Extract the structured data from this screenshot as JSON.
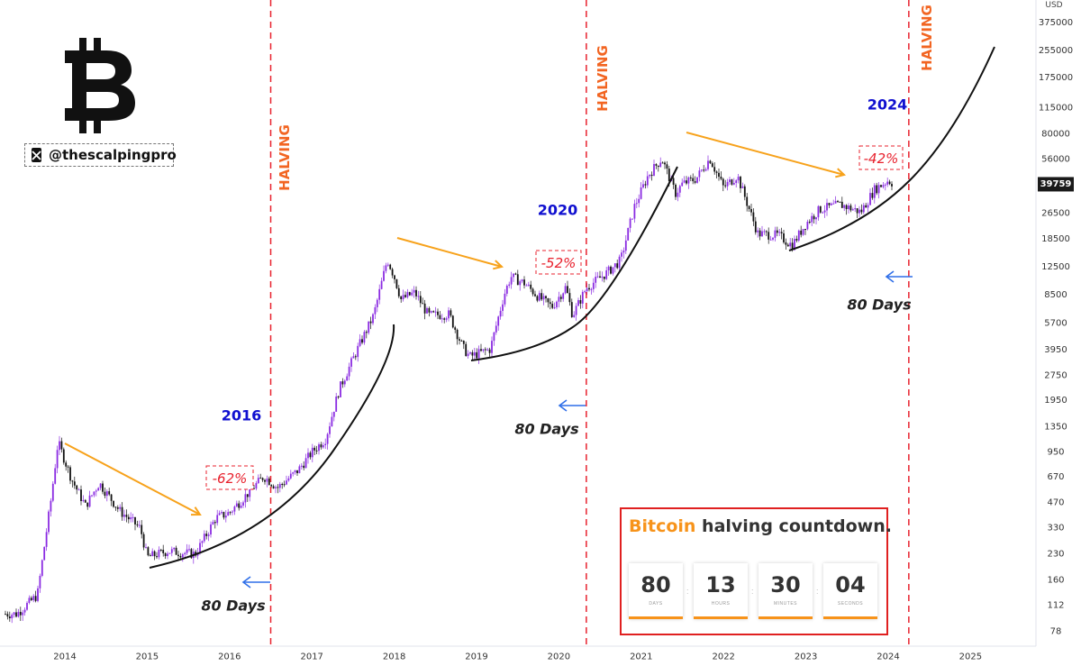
{
  "branding": {
    "handle": "@thescalpingpro",
    "logo_icon": "bitcoin-b-icon",
    "social_icon": "x-logo-icon"
  },
  "price_axis": {
    "currency": "USD",
    "ticks": [
      "375000",
      "255000",
      "175000",
      "115000",
      "80000",
      "56000",
      "39759",
      "26500",
      "18500",
      "12500",
      "8500",
      "5700",
      "3950",
      "2750",
      "1950",
      "1350",
      "950",
      "670",
      "470",
      "330",
      "230",
      "160",
      "112",
      "78"
    ],
    "current_price": "39759"
  },
  "time_axis": {
    "ticks": [
      "2014",
      "2015",
      "2016",
      "2017",
      "2018",
      "2019",
      "2020",
      "2021",
      "2022",
      "2023",
      "2024",
      "2025"
    ]
  },
  "annotations": {
    "halving_label": "HALVING",
    "year_labels": [
      "2016",
      "2020",
      "2024"
    ],
    "drawdowns": [
      "-62%",
      "-52%",
      "-42%"
    ],
    "days_label": "80 Days"
  },
  "countdown": {
    "brand": "Bitcoin",
    "title_rest": " halving countdown.",
    "units": [
      {
        "value": "80",
        "label": "DAYS"
      },
      {
        "value": "13",
        "label": "HOURS"
      },
      {
        "value": "30",
        "label": "MINUTES"
      },
      {
        "value": "04",
        "label": "SECONDS"
      }
    ]
  },
  "colors": {
    "candle_up": "#8a2be2",
    "candle_down": "#111111",
    "halving_line": "#e8222e",
    "halving_text": "#f26522",
    "trend_arrow": "#f7a21b",
    "year_text": "#1010d0",
    "days_arrow": "#2f6fe8",
    "current_price_bg": "#1a1a1a"
  },
  "chart_data": {
    "type": "candlestick",
    "title": "",
    "y_scale": "log",
    "ylim": [
      60,
      380000
    ],
    "x_range": [
      "2013-06",
      "2025-09"
    ],
    "xlabel": "",
    "ylabel": "USD",
    "halving_dates": [
      "2016-07",
      "2020-05",
      "2024-04"
    ],
    "cycles": [
      {
        "year_label": "2016",
        "drawdown": "-62%",
        "high_date": "2013-12",
        "high_price": 1150,
        "low_date": "2015-01",
        "low_price": 180
      },
      {
        "year_label": "2020",
        "drawdown": "-52%",
        "high_date": "2017-12",
        "high_price": 19700,
        "low_date": "2018-12",
        "low_price": 3200
      },
      {
        "year_label": "2024",
        "drawdown": "-42%",
        "high_date": "2021-11",
        "high_price": 69000,
        "low_date": "2022-11",
        "low_price": 15500
      }
    ],
    "price_path": [
      [
        "2013-06",
        100
      ],
      [
        "2013-09",
        130
      ],
      [
        "2013-11",
        500
      ],
      [
        "2013-12",
        1100
      ],
      [
        "2014-02",
        650
      ],
      [
        "2014-04",
        450
      ],
      [
        "2014-06",
        620
      ],
      [
        "2014-09",
        420
      ],
      [
        "2014-12",
        330
      ],
      [
        "2015-01",
        220
      ],
      [
        "2015-04",
        240
      ],
      [
        "2015-08",
        230
      ],
      [
        "2015-11",
        380
      ],
      [
        "2016-01",
        410
      ],
      [
        "2016-06",
        680
      ],
      [
        "2016-08",
        580
      ],
      [
        "2016-11",
        740
      ],
      [
        "2017-01",
        950
      ],
      [
        "2017-03",
        1150
      ],
      [
        "2017-05",
        2300
      ],
      [
        "2017-08",
        4300
      ],
      [
        "2017-10",
        6400
      ],
      [
        "2017-12",
        14000
      ],
      [
        "2018-01",
        11000
      ],
      [
        "2018-02",
        8000
      ],
      [
        "2018-04",
        8800
      ],
      [
        "2018-06",
        6400
      ],
      [
        "2018-09",
        6500
      ],
      [
        "2018-11",
        4100
      ],
      [
        "2018-12",
        3600
      ],
      [
        "2019-03",
        4000
      ],
      [
        "2019-05",
        8500
      ],
      [
        "2019-06",
        11000
      ],
      [
        "2019-08",
        10000
      ],
      [
        "2019-10",
        8300
      ],
      [
        "2019-12",
        7200
      ],
      [
        "2020-02",
        9500
      ],
      [
        "2020-03",
        6400
      ],
      [
        "2020-05",
        9400
      ],
      [
        "2020-08",
        11600
      ],
      [
        "2020-10",
        13800
      ],
      [
        "2020-12",
        29000
      ],
      [
        "2021-02",
        45000
      ],
      [
        "2021-04",
        57000
      ],
      [
        "2021-06",
        35000
      ],
      [
        "2021-07",
        40000
      ],
      [
        "2021-09",
        43000
      ],
      [
        "2021-11",
        57000
      ],
      [
        "2022-01",
        38000
      ],
      [
        "2022-03",
        45000
      ],
      [
        "2022-06",
        20000
      ],
      [
        "2022-09",
        19500
      ],
      [
        "2022-11",
        17000
      ],
      [
        "2023-01",
        23000
      ],
      [
        "2023-03",
        28000
      ],
      [
        "2023-06",
        30000
      ],
      [
        "2023-09",
        27000
      ],
      [
        "2023-11",
        37000
      ],
      [
        "2024-01",
        42000
      ],
      [
        "2024-02",
        39759
      ]
    ]
  }
}
